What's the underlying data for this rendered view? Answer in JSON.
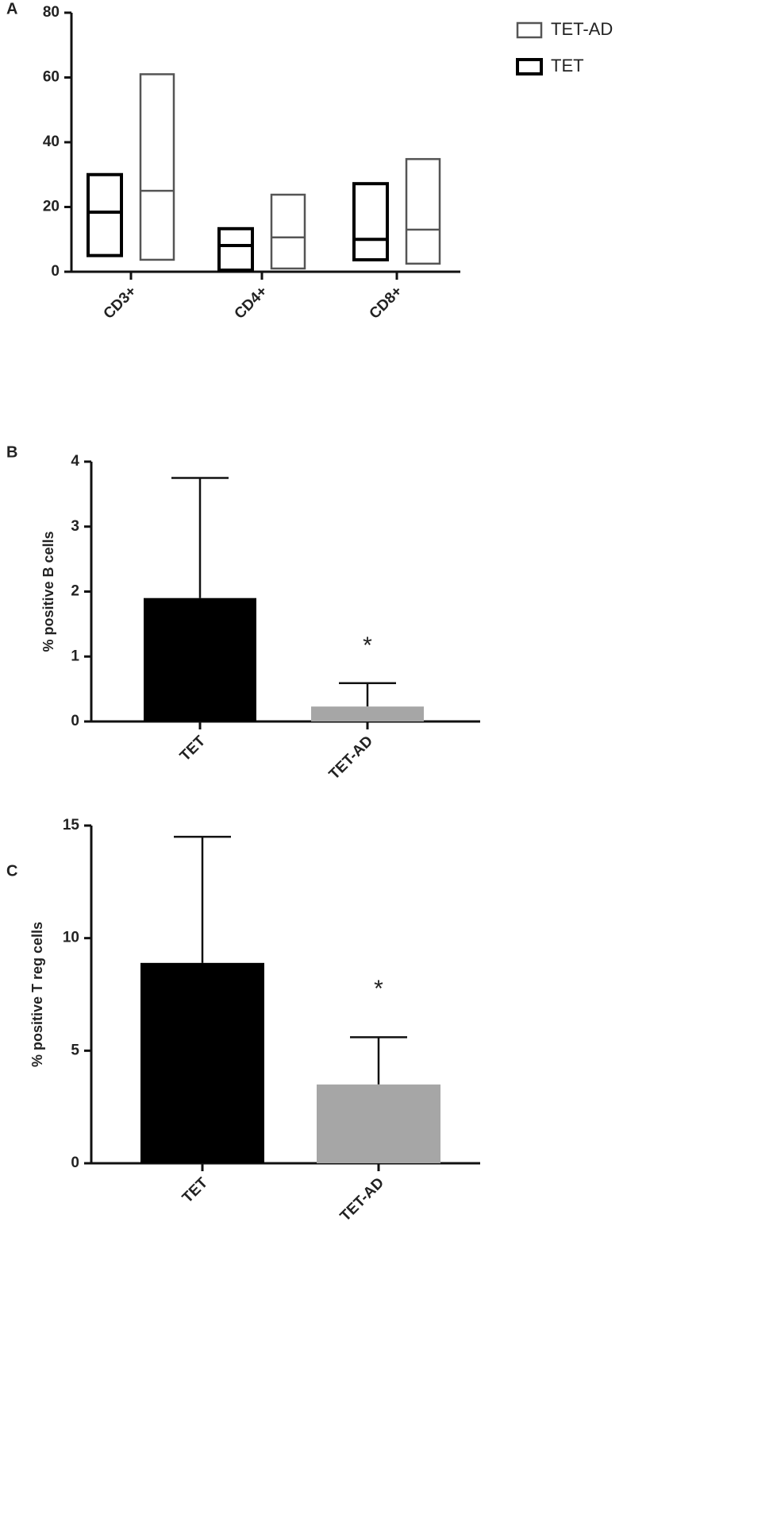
{
  "chart_data": [
    {
      "type": "floating-bar",
      "panel_label": "A",
      "categories": [
        "CD3+",
        "CD4+",
        "CD8+"
      ],
      "series": [
        {
          "name": "TET",
          "color": "#000000",
          "low": [
            5,
            0.5,
            3.7
          ],
          "median": [
            18.4,
            8.1,
            10
          ],
          "high": [
            30,
            13.3,
            27.2
          ]
        },
        {
          "name": "TET-AD",
          "color": "#555555",
          "low": [
            3.7,
            1,
            2.5
          ],
          "median": [
            25,
            10.6,
            13
          ],
          "high": [
            61,
            23.8,
            34.8
          ]
        }
      ],
      "ylim": [
        0,
        80
      ],
      "yticks": [
        0,
        20,
        40,
        60,
        80
      ]
    },
    {
      "type": "bar",
      "panel_label": "B",
      "y_label": "% positive B cells",
      "categories": [
        "TET",
        "TET-AD"
      ],
      "values": [
        1.9,
        0.23
      ],
      "errors": [
        1.85,
        0.36
      ],
      "colors": [
        "#000000",
        "#a6a6a6"
      ],
      "annotation": "*",
      "ylim": [
        0,
        4
      ],
      "yticks": [
        0,
        1,
        2,
        3,
        4
      ]
    },
    {
      "type": "bar",
      "panel_label": "C",
      "y_label": "% positive T reg cells",
      "categories": [
        "TET",
        "TET-AD"
      ],
      "values": [
        8.9,
        3.5
      ],
      "errors": [
        5.6,
        2.1
      ],
      "colors": [
        "#000000",
        "#a6a6a6"
      ],
      "annotation": "*",
      "ylim": [
        0,
        15
      ],
      "yticks": [
        0,
        5,
        10,
        15
      ]
    }
  ]
}
